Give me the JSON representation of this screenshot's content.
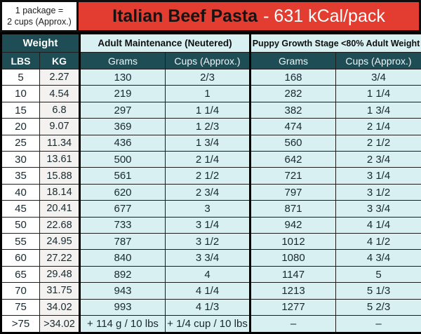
{
  "package_note": {
    "line1": "1 package =",
    "line2": "2 cups (Approx.)"
  },
  "banner": {
    "product": "Italian Beef Pasta",
    "calories": "- 631 kCal/pack"
  },
  "colors": {
    "banner_red": "#e23d30",
    "header_teal": "#1e4d56",
    "cell_cyan": "#d8f0f2",
    "banner_product_text": "#141414",
    "banner_calories_text": "#ffffff"
  },
  "chart_data": {
    "type": "table",
    "title": "Italian Beef Pasta - 631 kCal/pack",
    "group_headers": {
      "weight": "Weight",
      "adult": "Adult Maintenance (Neutered)",
      "puppy": "Puppy Growth Stage <80% Adult Weight"
    },
    "columns": {
      "lbs": "LBS",
      "kg": "KG",
      "adult_grams": "Grams",
      "adult_cups": "Cups (Approx.)",
      "puppy_grams": "Grams",
      "puppy_cups": "Cups (Approx.)"
    },
    "rows": [
      {
        "lbs": "5",
        "kg": "2.27",
        "adult_grams": "130",
        "adult_cups": "2/3",
        "puppy_grams": "168",
        "puppy_cups": "3/4"
      },
      {
        "lbs": "10",
        "kg": "4.54",
        "adult_grams": "219",
        "adult_cups": "1",
        "puppy_grams": "282",
        "puppy_cups": "1 1/4"
      },
      {
        "lbs": "15",
        "kg": "6.8",
        "adult_grams": "297",
        "adult_cups": "1 1/4",
        "puppy_grams": "382",
        "puppy_cups": "1 3/4"
      },
      {
        "lbs": "20",
        "kg": "9.07",
        "adult_grams": "369",
        "adult_cups": "1 2/3",
        "puppy_grams": "474",
        "puppy_cups": "2 1/4"
      },
      {
        "lbs": "25",
        "kg": "11.34",
        "adult_grams": "436",
        "adult_cups": "1 3/4",
        "puppy_grams": "560",
        "puppy_cups": "2 1/2"
      },
      {
        "lbs": "30",
        "kg": "13.61",
        "adult_grams": "500",
        "adult_cups": "2 1/4",
        "puppy_grams": "642",
        "puppy_cups": "2 3/4"
      },
      {
        "lbs": "35",
        "kg": "15.88",
        "adult_grams": "561",
        "adult_cups": "2 1/2",
        "puppy_grams": "721",
        "puppy_cups": "3 1/4"
      },
      {
        "lbs": "40",
        "kg": "18.14",
        "adult_grams": "620",
        "adult_cups": "2 3/4",
        "puppy_grams": "797",
        "puppy_cups": "3 1/2"
      },
      {
        "lbs": "45",
        "kg": "20.41",
        "adult_grams": "677",
        "adult_cups": "3",
        "puppy_grams": "871",
        "puppy_cups": "3 3/4"
      },
      {
        "lbs": "50",
        "kg": "22.68",
        "adult_grams": "733",
        "adult_cups": "3 1/4",
        "puppy_grams": "942",
        "puppy_cups": "4 1/4"
      },
      {
        "lbs": "55",
        "kg": "24.95",
        "adult_grams": "787",
        "adult_cups": "3 1/2",
        "puppy_grams": "1012",
        "puppy_cups": "4 1/2"
      },
      {
        "lbs": "60",
        "kg": "27.22",
        "adult_grams": "840",
        "adult_cups": "3 3/4",
        "puppy_grams": "1080",
        "puppy_cups": "4 3/4"
      },
      {
        "lbs": "65",
        "kg": "29.48",
        "adult_grams": "892",
        "adult_cups": "4",
        "puppy_grams": "1147",
        "puppy_cups": "5"
      },
      {
        "lbs": "70",
        "kg": "31.75",
        "adult_grams": "943",
        "adult_cups": "4 1/4",
        "puppy_grams": "1213",
        "puppy_cups": "5 1/3"
      },
      {
        "lbs": "75",
        "kg": "34.02",
        "adult_grams": "993",
        "adult_cups": "4 1/3",
        "puppy_grams": "1277",
        "puppy_cups": "5 2/3"
      },
      {
        "lbs": ">75",
        "kg": ">34.02",
        "adult_grams": "+ 114 g / 10 lbs",
        "adult_cups": "+ 1/4 cup / 10 lbs",
        "puppy_grams": "–",
        "puppy_cups": "–"
      }
    ]
  }
}
